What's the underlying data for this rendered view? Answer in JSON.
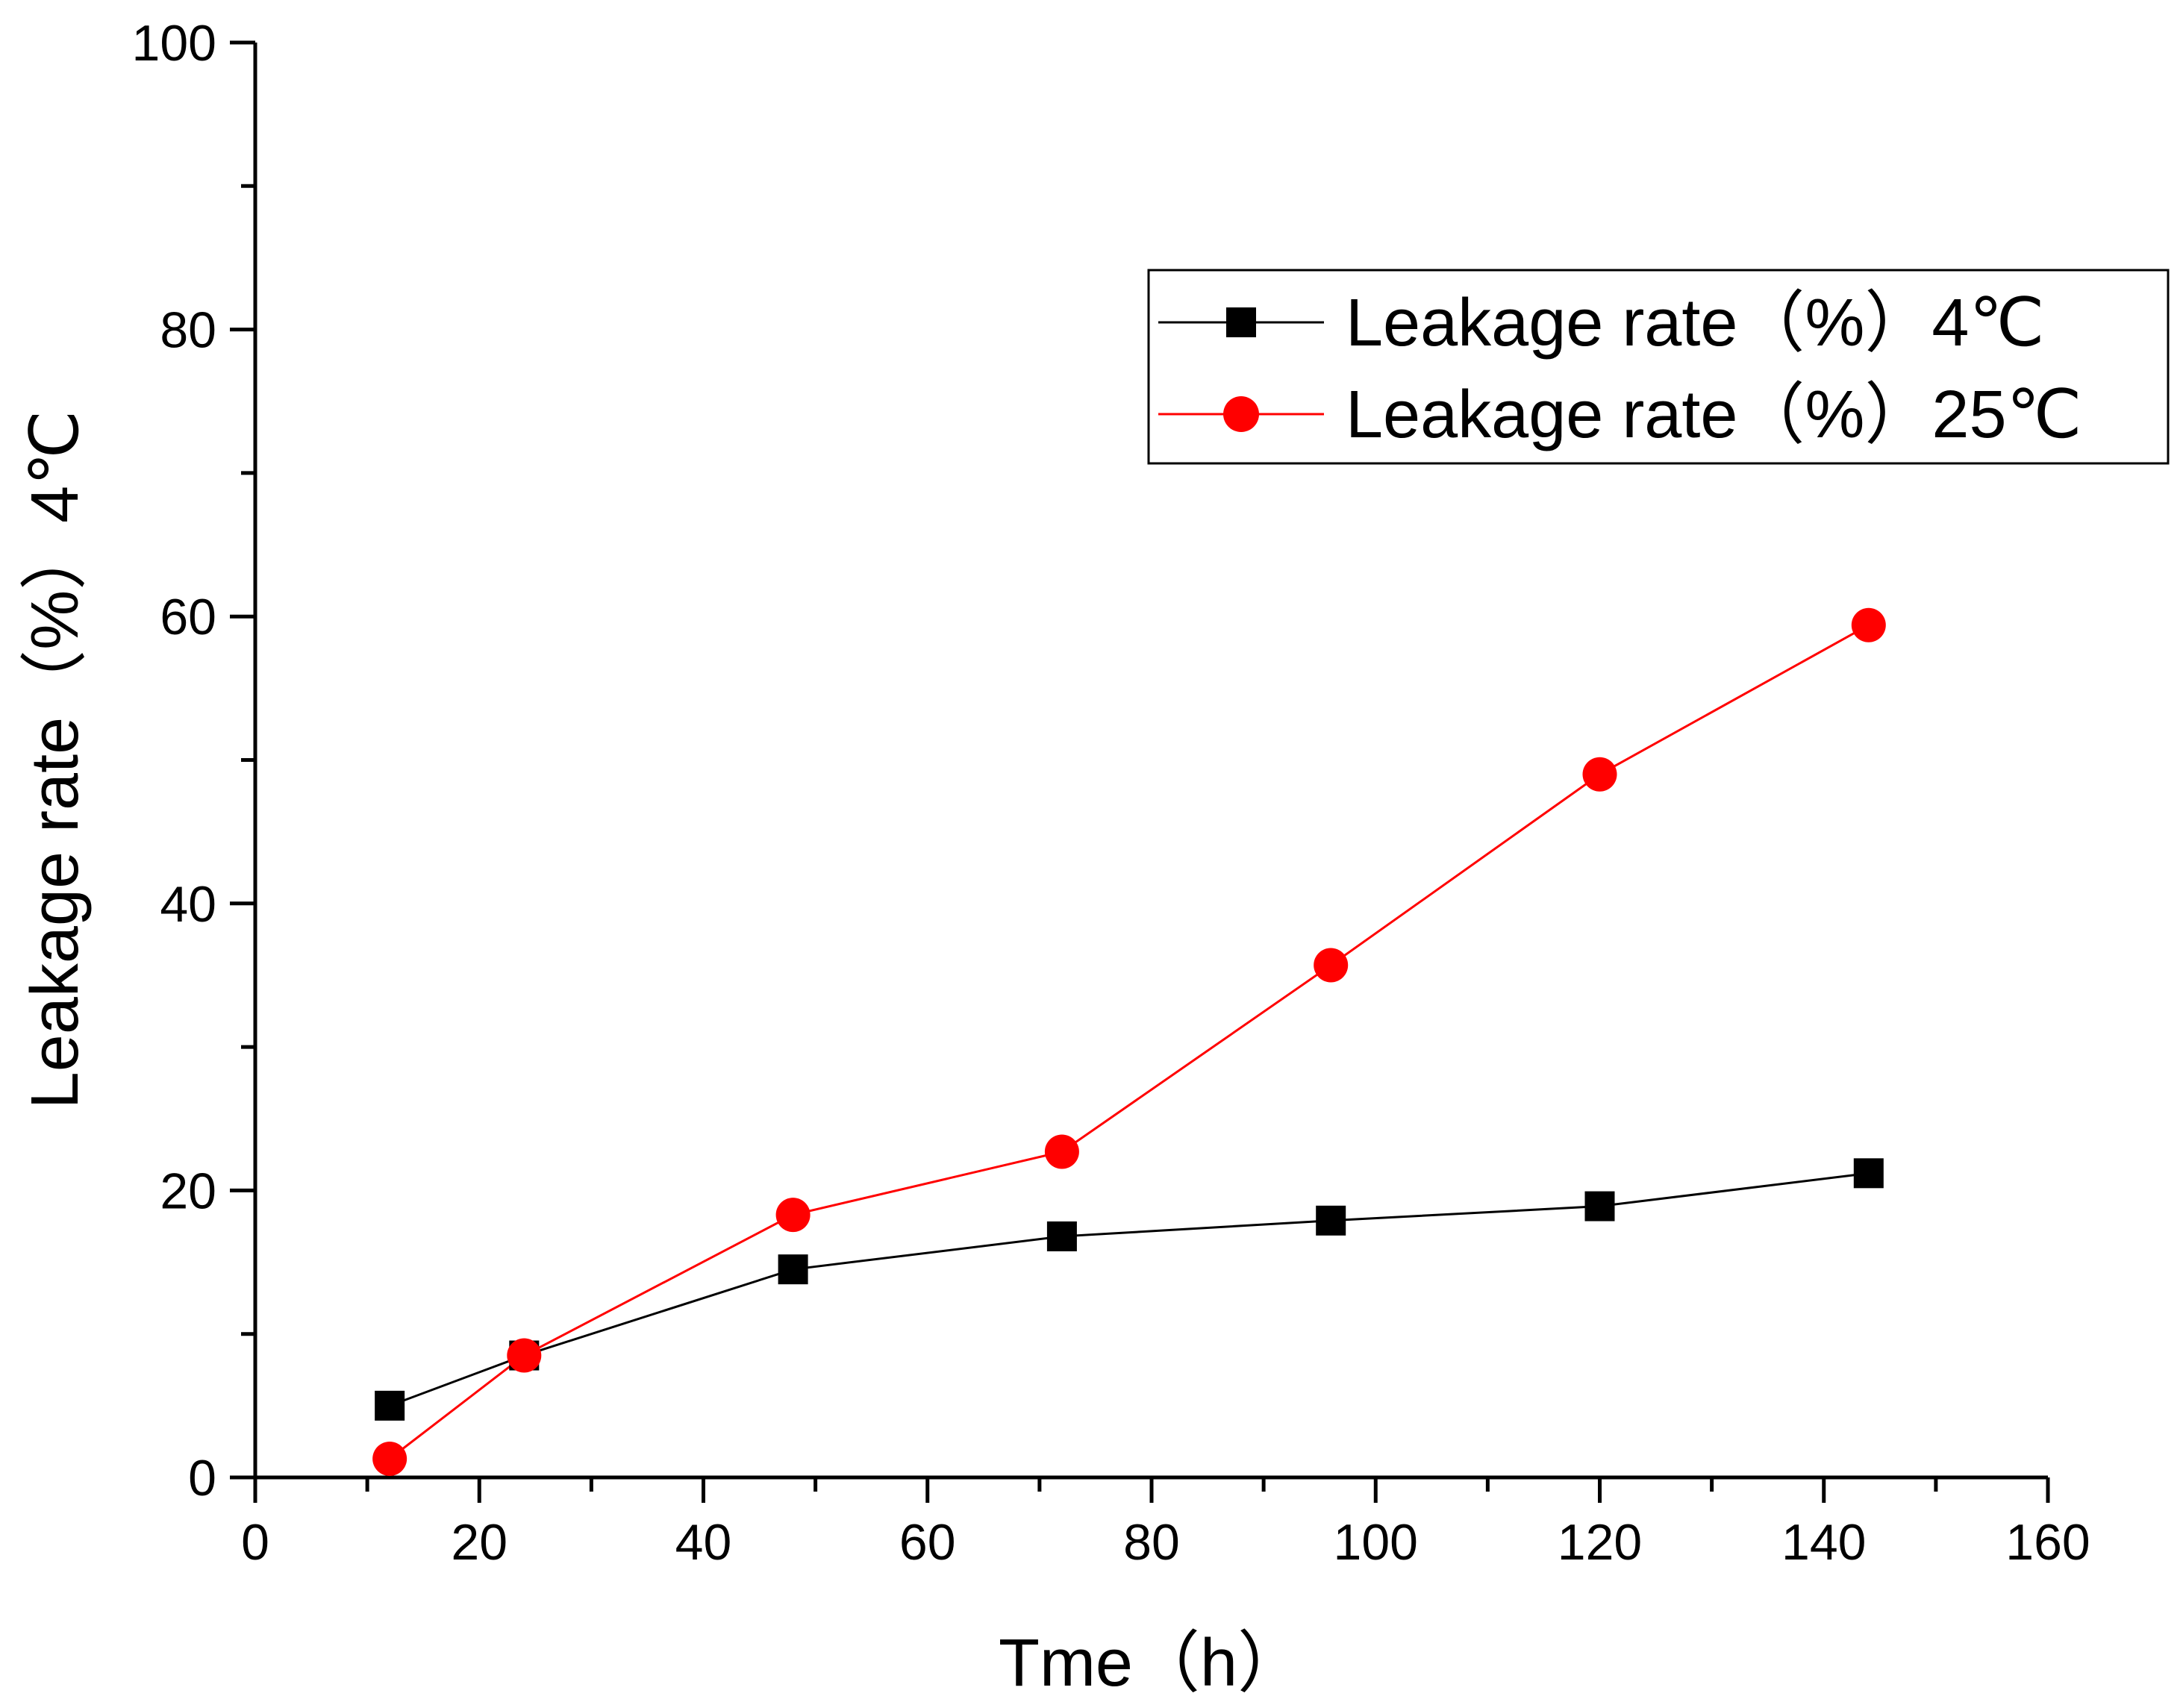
{
  "chart_data": {
    "type": "line",
    "title": "",
    "xlabel": "Tme（h）",
    "ylabel": "Leakage rate（%）4℃",
    "xlim": [
      0,
      160
    ],
    "ylim": [
      0,
      100
    ],
    "x_ticks": [
      0,
      20,
      40,
      60,
      80,
      100,
      120,
      140,
      160
    ],
    "y_ticks": [
      0,
      20,
      40,
      60,
      80,
      100
    ],
    "grid": false,
    "legend_position": "upper-right",
    "series": [
      {
        "name": "Leakage rate（%）4℃",
        "color": "#000000",
        "marker": "square",
        "x": [
          12,
          24,
          48,
          72,
          96,
          120,
          144
        ],
        "y": [
          5.0,
          8.5,
          14.5,
          16.8,
          17.9,
          18.9,
          21.2
        ]
      },
      {
        "name": "Leakage rate（%）25℃",
        "color": "#ff0000",
        "marker": "circle",
        "x": [
          12,
          24,
          48,
          72,
          96,
          120,
          144
        ],
        "y": [
          1.3,
          8.5,
          18.3,
          22.7,
          35.7,
          49.0,
          59.4
        ]
      }
    ]
  }
}
